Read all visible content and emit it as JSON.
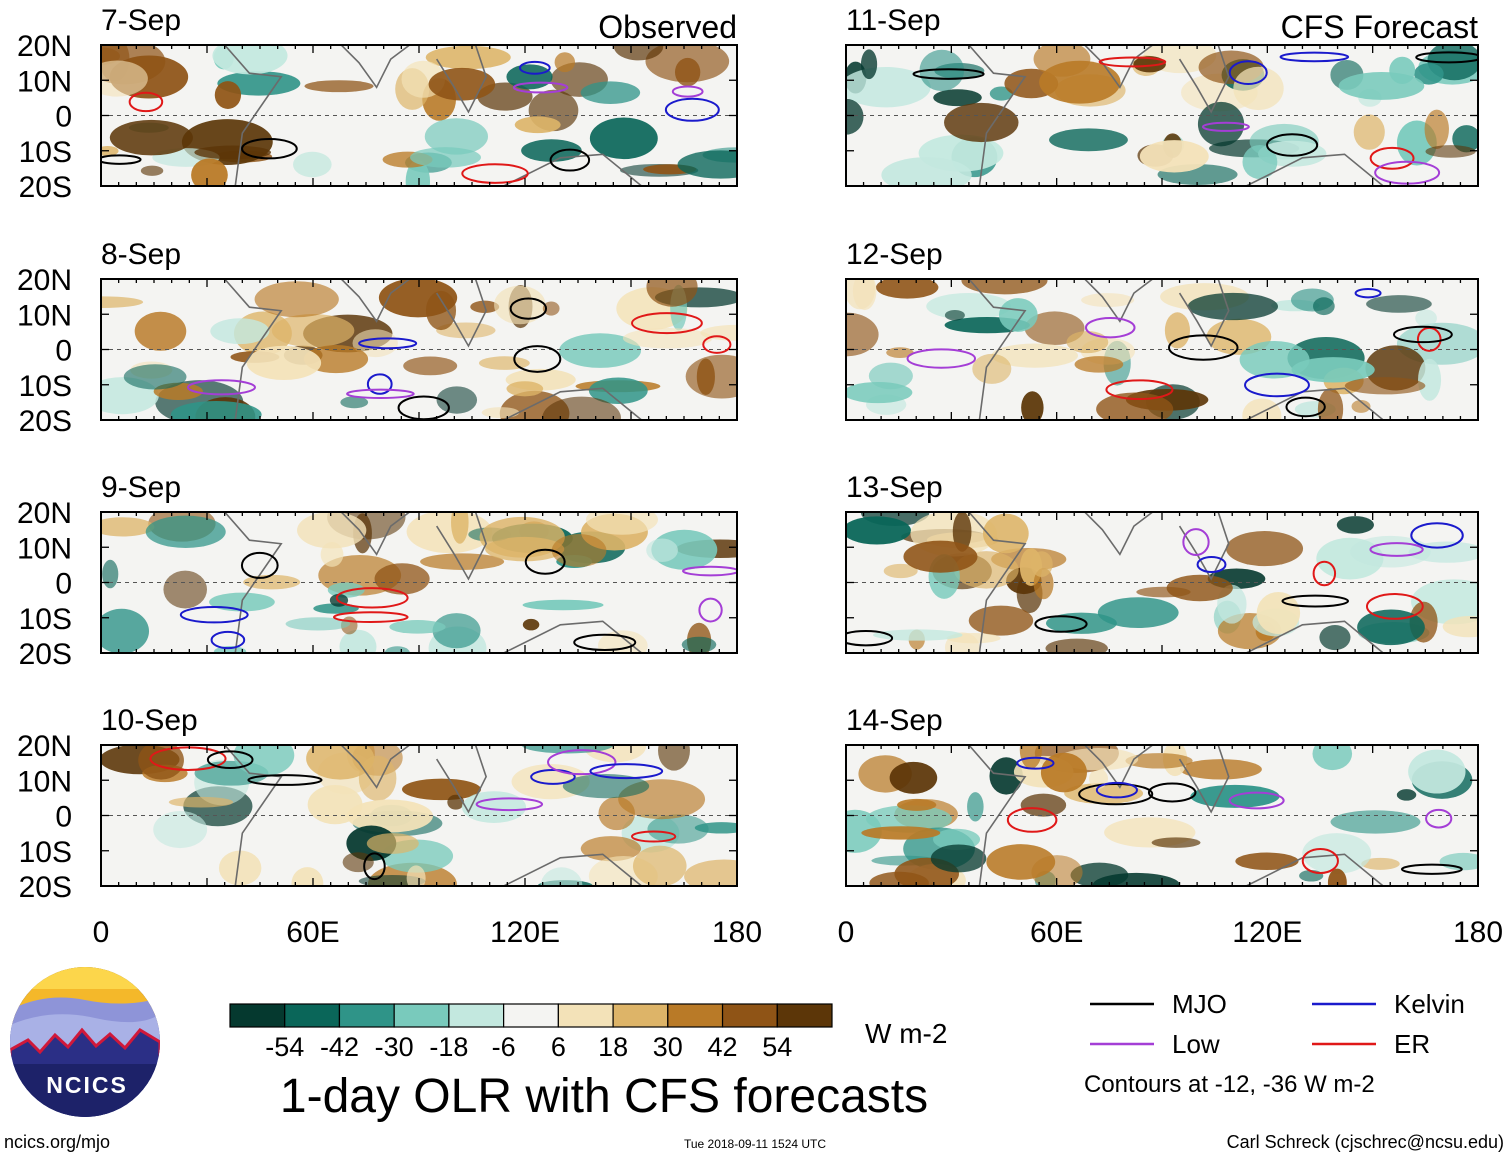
{
  "chart_data": {
    "type": "heatmap",
    "title": "1-day OLR with CFS forecasts",
    "variable": "OLR anomaly",
    "units": "W m-2",
    "observed_label": "Observed",
    "forecast_label": "CFS Forecast",
    "panels": [
      {
        "date": "7-Sep",
        "kind": "observed"
      },
      {
        "date": "8-Sep",
        "kind": "observed"
      },
      {
        "date": "9-Sep",
        "kind": "observed"
      },
      {
        "date": "10-Sep",
        "kind": "observed"
      },
      {
        "date": "11-Sep",
        "kind": "forecast"
      },
      {
        "date": "12-Sep",
        "kind": "forecast"
      },
      {
        "date": "13-Sep",
        "kind": "forecast"
      },
      {
        "date": "14-Sep",
        "kind": "forecast"
      }
    ],
    "x_axis": {
      "range": [
        0,
        180
      ],
      "ticks": [
        0,
        60,
        120,
        180
      ],
      "tick_labels": [
        "0",
        "60E",
        "120E",
        "180"
      ]
    },
    "y_axis": {
      "range": [
        -20,
        20
      ],
      "ticks": [
        20,
        10,
        0,
        -10,
        -20
      ],
      "tick_labels": [
        "20N",
        "10N",
        "0",
        "10S",
        "20S"
      ]
    },
    "colorbar": {
      "colors": [
        "#05392f",
        "#0a6659",
        "#2f9488",
        "#79cabc",
        "#c3e8df",
        "#f4f4f2",
        "#f3e2b8",
        "#ddb468",
        "#b97a27",
        "#8f5416",
        "#5c3608"
      ],
      "tick_labels": [
        "-54",
        "-42",
        "-30",
        "-18",
        "-6",
        "6",
        "18",
        "30",
        "42",
        "54"
      ]
    },
    "legend": [
      {
        "label": "MJO",
        "color": "#000000"
      },
      {
        "label": "Kelvin",
        "color": "#1a1acc"
      },
      {
        "label": "Low",
        "color": "#a43ed6"
      },
      {
        "label": "ER",
        "color": "#e01818"
      }
    ],
    "contour_note": "Contours at -12, -36 W m-2"
  },
  "footer": {
    "url": "ncics.org/mjo",
    "timestamp": "Tue 2018-09-11 1524 UTC",
    "author": "Carl Schreck (cjschrec@ncsu.edu)"
  },
  "logo": {
    "text": "NCICS"
  }
}
